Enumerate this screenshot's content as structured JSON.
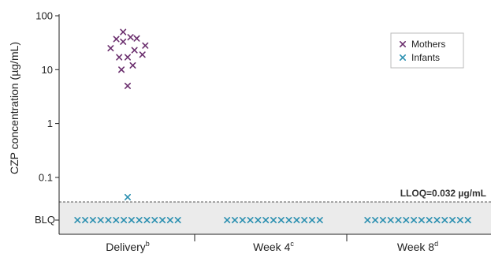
{
  "chart_data": {
    "type": "scatter",
    "ylabel": "CZP concentration (µg/mL)",
    "yscale": "log",
    "ylim": [
      0.02,
      100
    ],
    "yticks": [
      "100",
      "10",
      "1",
      "0.1"
    ],
    "ytick_values": [
      100,
      10,
      1,
      0.1
    ],
    "blq_label": "BLQ",
    "lloq": {
      "value": 0.032,
      "label": "LLOQ=0.032 µg/mL"
    },
    "categories": [
      {
        "name": "Delivery",
        "sup": "b"
      },
      {
        "name": "Week 4",
        "sup": "c"
      },
      {
        "name": "Week 8",
        "sup": "d"
      }
    ],
    "legend": {
      "position": "top-right"
    },
    "series": [
      {
        "name": "Mothers",
        "color": "#6b2f6e",
        "marker": "x",
        "points": [
          {
            "category": "Delivery",
            "x_offset": -3.0,
            "y": 25
          },
          {
            "category": "Delivery",
            "x_offset": -2.0,
            "y": 37
          },
          {
            "category": "Delivery",
            "x_offset": -1.5,
            "y": 17
          },
          {
            "category": "Delivery",
            "x_offset": -0.8,
            "y": 50
          },
          {
            "category": "Delivery",
            "x_offset": -0.8,
            "y": 33
          },
          {
            "category": "Delivery",
            "x_offset": -1.1,
            "y": 10
          },
          {
            "category": "Delivery",
            "x_offset": 0.0,
            "y": 17
          },
          {
            "category": "Delivery",
            "x_offset": 0.0,
            "y": 5
          },
          {
            "category": "Delivery",
            "x_offset": 0.5,
            "y": 40
          },
          {
            "category": "Delivery",
            "x_offset": 0.9,
            "y": 12
          },
          {
            "category": "Delivery",
            "x_offset": 1.2,
            "y": 23
          },
          {
            "category": "Delivery",
            "x_offset": 1.6,
            "y": 38
          },
          {
            "category": "Delivery",
            "x_offset": 2.6,
            "y": 19
          },
          {
            "category": "Delivery",
            "x_offset": 3.1,
            "y": 28
          }
        ]
      },
      {
        "name": "Infants",
        "color": "#2a8fb0",
        "marker": "x",
        "above_lloq": [
          {
            "category": "Delivery",
            "x_offset": 0.0,
            "y": 0.043
          }
        ],
        "blq_counts": {
          "Delivery": 14,
          "Week 4": 13,
          "Week 8": 14
        }
      }
    ]
  }
}
